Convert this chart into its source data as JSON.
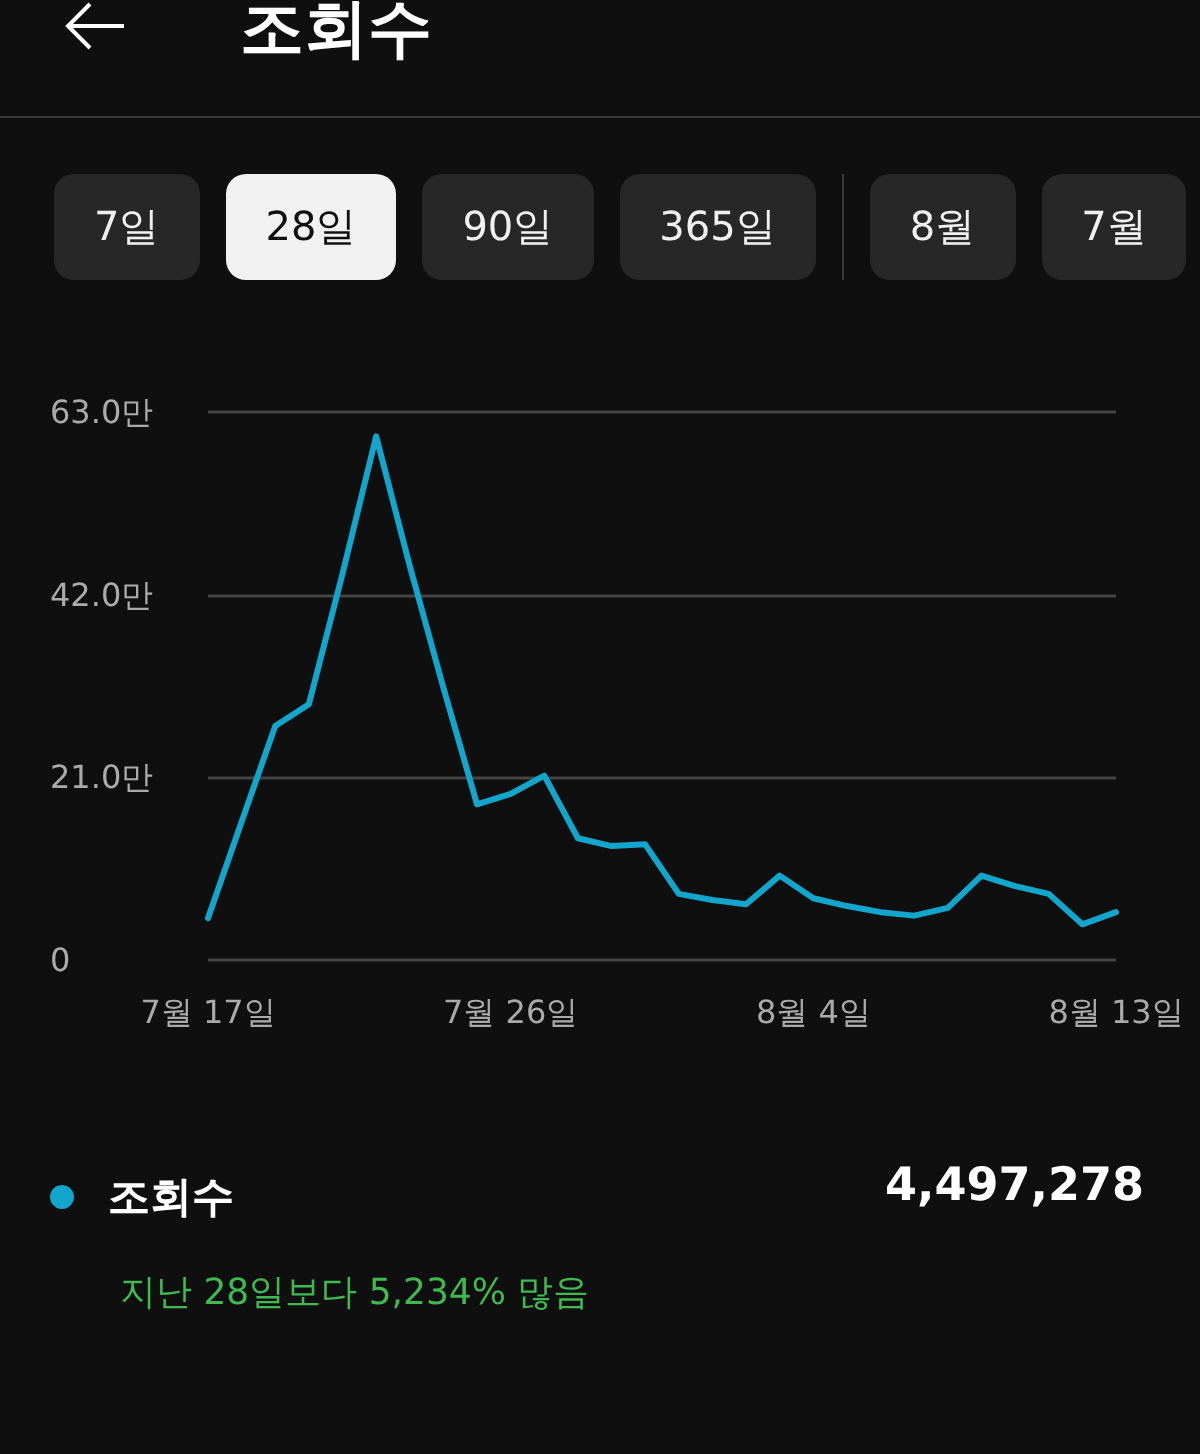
{
  "chart_data": {
    "type": "line",
    "title": "조회수",
    "categories": [
      "7월 17일",
      null,
      null,
      null,
      null,
      null,
      null,
      null,
      null,
      "7월 26일",
      null,
      null,
      null,
      null,
      null,
      null,
      null,
      null,
      "8월 4일",
      null,
      null,
      null,
      null,
      null,
      null,
      null,
      null,
      "8월 13일"
    ],
    "series": [
      {
        "name": "조회수",
        "color": "#12a6cc",
        "values": [
          4.8,
          15.9,
          26.9,
          29.4,
          44.4,
          60.2,
          45.3,
          31.3,
          17.9,
          19.1,
          21.2,
          14.0,
          13.1,
          13.3,
          7.6,
          6.9,
          6.4,
          9.7,
          7.1,
          6.2,
          5.5,
          5.1,
          6.0,
          9.7,
          8.5,
          7.6,
          4.1,
          5.5
        ]
      }
    ],
    "ylim": [
      0,
      63
    ],
    "yticks": [
      0,
      {
        "value": 21,
        "label": "21.0만"
      },
      {
        "value": 42,
        "label": "42.0만"
      },
      {
        "value": 63,
        "label": "63.0만"
      }
    ],
    "grid": "y",
    "legend": "bottom",
    "marker": "none",
    "line_style": "solid",
    "annotations": [
      "7일",
      "28일",
      "90일",
      "365일",
      "8월",
      "7월",
      "4,497,278",
      "지난 28일보다 5,234% 많음"
    ]
  }
}
